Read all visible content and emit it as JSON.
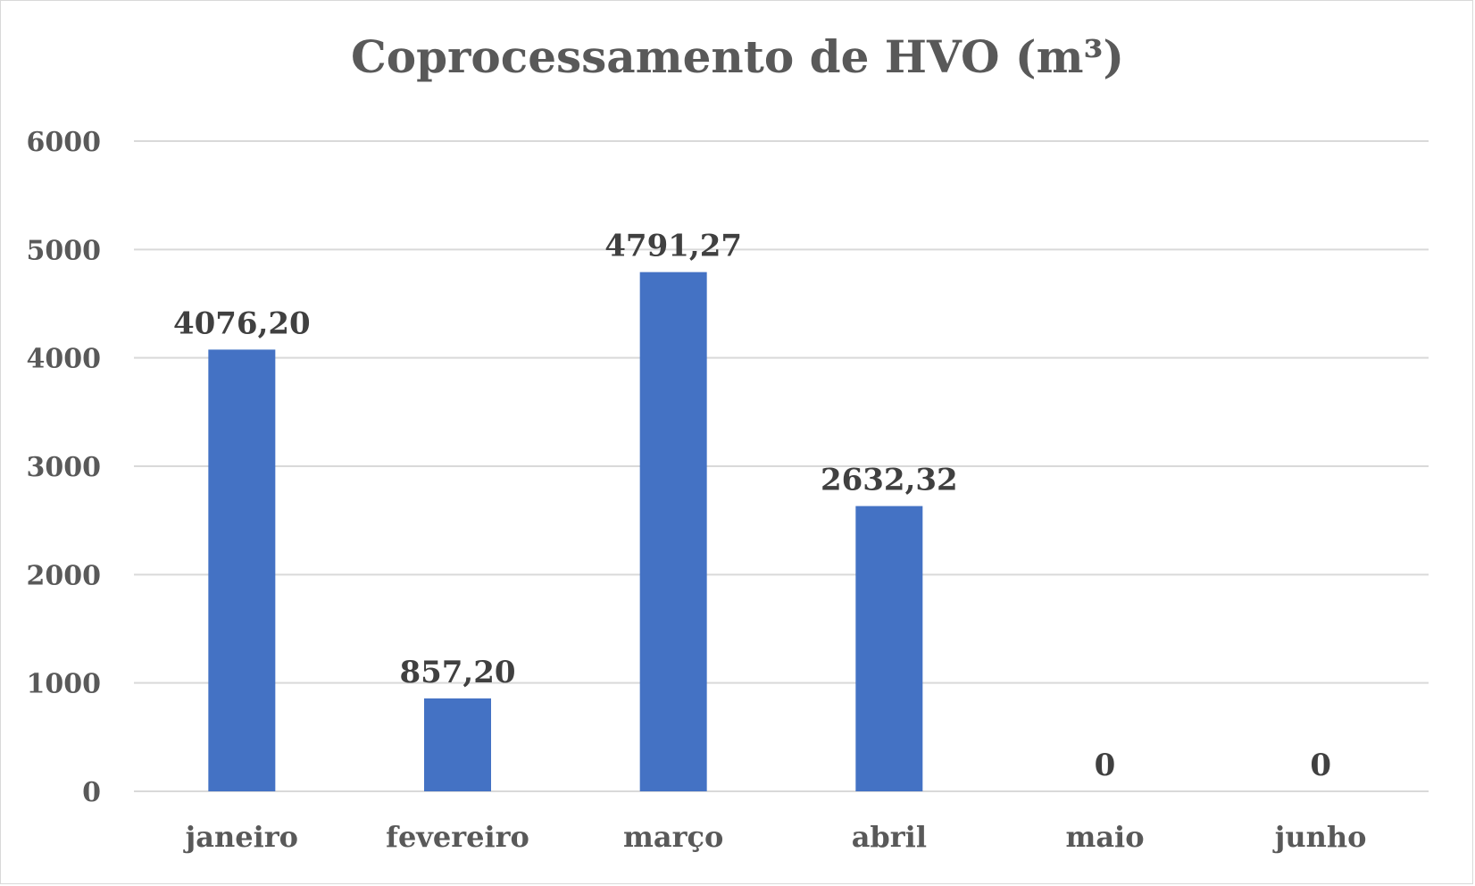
{
  "chart_data": {
    "type": "bar",
    "title": "Coprocessamento de HVO (m³)",
    "xlabel": "",
    "ylabel": "",
    "categories": [
      "janeiro",
      "fevereiro",
      "março",
      "abril",
      "maio",
      "junho"
    ],
    "values": [
      4076.2,
      857.2,
      4791.27,
      2632.32,
      0,
      0
    ],
    "data_labels": [
      "4076,20",
      "857,20",
      "4791,27",
      "2632,32",
      "0",
      "0"
    ],
    "ylim": [
      0,
      6000
    ],
    "yticks": [
      0,
      1000,
      2000,
      3000,
      4000,
      5000,
      6000
    ],
    "ytick_labels": [
      "0",
      "1000",
      "2000",
      "3000",
      "4000",
      "5000",
      "6000"
    ],
    "grid": true,
    "legend": "none",
    "colors": {
      "bar": "#4472c4",
      "grid": "#d9d9d9",
      "text": "#595959",
      "data_label": "#404040"
    }
  }
}
